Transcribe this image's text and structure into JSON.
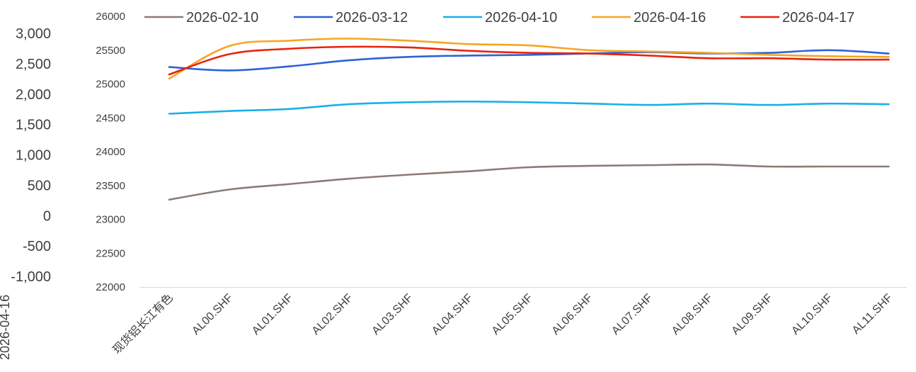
{
  "chart_data": {
    "type": "line",
    "title": "",
    "xlabel": "",
    "ylabel": "",
    "categories": [
      "现货铝长江有色",
      "AL00.SHF",
      "AL01.SHF",
      "AL02.SHF",
      "AL03.SHF",
      "AL04.SHF",
      "AL05.SHF",
      "AL06.SHF",
      "AL07.SHF",
      "AL08.SHF",
      "AL09.SHF",
      "AL10.SHF",
      "AL11.SHF"
    ],
    "ylim": [
      22000,
      26000
    ],
    "yticks": [
      "22000",
      "22500",
      "23000",
      "23500",
      "24000",
      "24500",
      "25000",
      "25500",
      "26000"
    ],
    "secondary_axis": {
      "ylim": [
        -1000,
        3000
      ],
      "ticks": [
        "-1,000",
        "-500",
        "0",
        "500",
        "1,000",
        "1,500",
        "2,000",
        "2,500",
        "3,000"
      ],
      "label_fragment": "2026-04-16"
    },
    "legend_position": "top",
    "grid": false,
    "series": [
      {
        "name": "2026-02-10",
        "color": "#8c7b75",
        "values": [
          23290,
          23440,
          23520,
          23600,
          23660,
          23710,
          23770,
          23790,
          23800,
          23810,
          23780,
          23780,
          23780
        ]
      },
      {
        "name": "2026-03-12",
        "color": "#2e62d6",
        "values": [
          25250,
          25200,
          25260,
          25350,
          25400,
          25420,
          25430,
          25450,
          25470,
          25450,
          25460,
          25500,
          25450
        ]
      },
      {
        "name": "2026-04-10",
        "color": "#1ab0e8",
        "values": [
          24560,
          24600,
          24630,
          24700,
          24730,
          24740,
          24730,
          24710,
          24690,
          24710,
          24690,
          24710,
          24700
        ]
      },
      {
        "name": "2026-04-16",
        "color": "#f5a623",
        "values": [
          25080,
          25560,
          25640,
          25670,
          25640,
          25590,
          25570,
          25500,
          25480,
          25460,
          25430,
          25410,
          25400
        ]
      },
      {
        "name": "2026-04-17",
        "color": "#e8230e",
        "values": [
          25140,
          25440,
          25520,
          25550,
          25540,
          25490,
          25460,
          25450,
          25420,
          25380,
          25380,
          25360,
          25360
        ]
      }
    ]
  }
}
